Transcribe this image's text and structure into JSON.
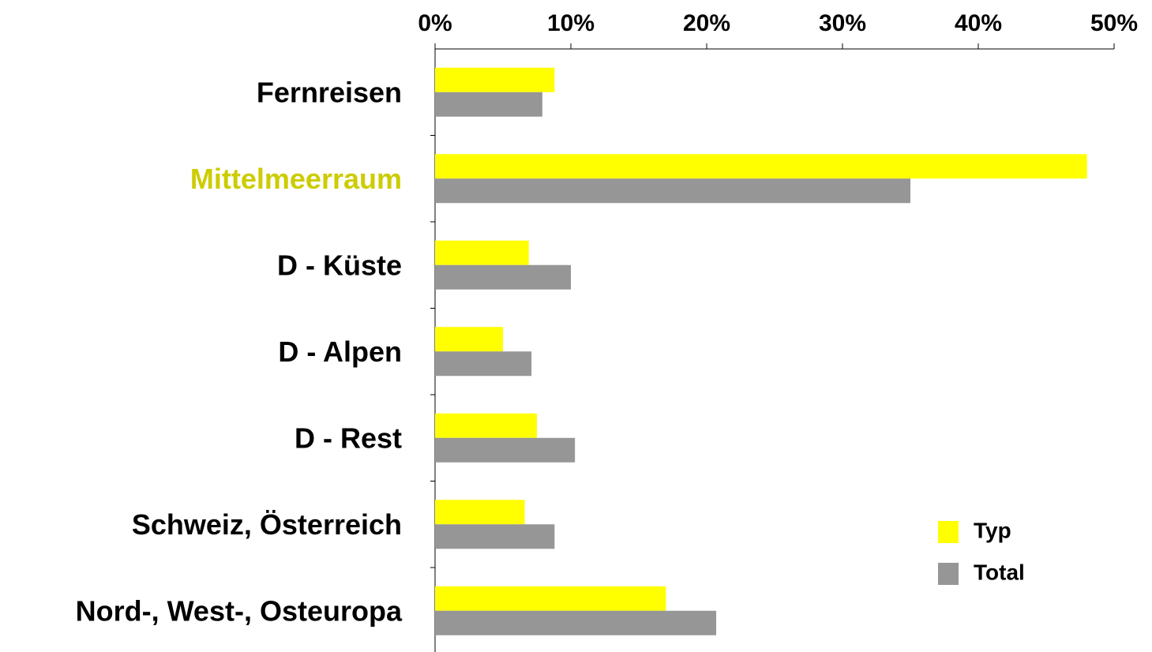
{
  "chart_data": {
    "type": "hbar",
    "categories": [
      "Fernreisen",
      "Mittelmeerraum",
      "D - Küste",
      "D - Alpen",
      "D - Rest",
      "Schweiz, Österreich",
      "Nord-, West-, Osteuropa"
    ],
    "category_colors": [
      "#000000",
      "#cccc00",
      "#000000",
      "#000000",
      "#000000",
      "#000000",
      "#000000"
    ],
    "series": [
      {
        "name": "Typ",
        "color": "#ffff00",
        "values": [
          8.8,
          48.0,
          6.9,
          5.0,
          7.5,
          6.6,
          17.0
        ]
      },
      {
        "name": "Total",
        "color": "#969696",
        "values": [
          7.9,
          35.0,
          10.0,
          7.1,
          10.3,
          8.8,
          20.7
        ]
      }
    ],
    "xlim": [
      0,
      50
    ],
    "xticks": [
      {
        "value": 0,
        "label": "0%"
      },
      {
        "value": 10,
        "label": "10%"
      },
      {
        "value": 20,
        "label": "20%"
      },
      {
        "value": 30,
        "label": "30%"
      },
      {
        "value": 40,
        "label": "40%"
      },
      {
        "value": 50,
        "label": "50%"
      }
    ],
    "legend": "bottom-right"
  }
}
